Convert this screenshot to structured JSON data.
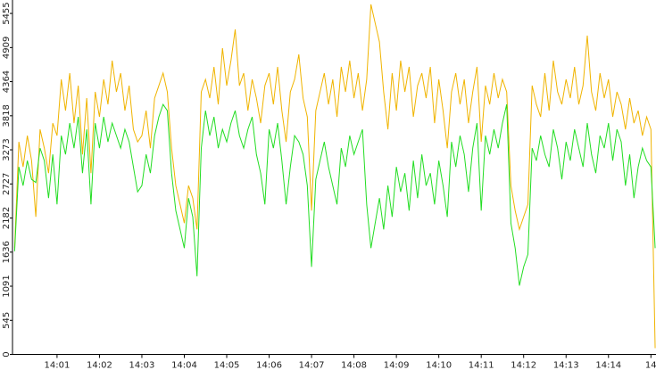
{
  "chart_data": {
    "type": "line",
    "x": [
      840,
      840.1,
      840.2,
      840.3,
      840.4,
      840.5,
      840.6,
      840.7,
      840.8,
      840.9,
      841,
      841.1,
      841.2,
      841.3,
      841.4,
      841.5,
      841.6,
      841.7,
      841.8,
      841.9,
      842,
      842.1,
      842.2,
      842.3,
      842.4,
      842.5,
      842.6,
      842.7,
      842.8,
      842.9,
      843,
      843.1,
      843.2,
      843.3,
      843.4,
      843.5,
      843.6,
      843.7,
      843.8,
      843.9,
      844,
      844.1,
      844.2,
      844.3,
      844.4,
      844.5,
      844.6,
      844.7,
      844.8,
      844.9,
      845,
      845.1,
      845.2,
      845.3,
      845.4,
      845.5,
      845.6,
      845.7,
      845.8,
      845.9,
      846,
      846.1,
      846.2,
      846.3,
      846.4,
      846.5,
      846.6,
      846.7,
      846.8,
      846.9,
      847,
      847.1,
      847.2,
      847.3,
      847.4,
      847.5,
      847.6,
      847.7,
      847.8,
      847.9,
      848,
      848.1,
      848.2,
      848.3,
      848.4,
      848.5,
      848.6,
      848.7,
      848.8,
      848.9,
      849,
      849.1,
      849.2,
      849.3,
      849.4,
      849.5,
      849.6,
      849.7,
      849.8,
      849.9,
      850,
      850.1,
      850.2,
      850.3,
      850.4,
      850.5,
      850.6,
      850.7,
      850.8,
      850.9,
      851,
      851.1,
      851.2,
      851.3,
      851.4,
      851.5,
      851.6,
      851.7,
      851.8,
      851.9,
      852,
      852.1,
      852.2,
      852.3,
      852.4,
      852.5,
      852.6,
      852.7,
      852.8,
      852.9,
      853,
      853.1,
      853.2,
      853.3,
      853.4,
      853.5,
      853.6,
      853.7,
      853.8,
      853.9,
      854,
      854.1,
      854.2,
      854.3,
      854.4,
      854.5,
      854.6,
      854.7,
      854.8,
      854.9,
      855,
      855.1
    ],
    "series": [
      {
        "color": "#f0b400",
        "values": [
          1700,
          3400,
          3000,
          3500,
          3100,
          2200,
          3600,
          3300,
          2900,
          3700,
          3500,
          4400,
          3900,
          4500,
          3700,
          4300,
          3200,
          4100,
          2900,
          4200,
          3800,
          4400,
          4000,
          4700,
          4200,
          4500,
          3900,
          4300,
          3600,
          3400,
          3500,
          3900,
          3300,
          4100,
          4300,
          4500,
          4200,
          3300,
          2700,
          2400,
          2100,
          2700,
          2500,
          2000,
          4200,
          4400,
          4100,
          4600,
          4000,
          4900,
          4300,
          4700,
          5200,
          4300,
          4500,
          3900,
          4400,
          4100,
          3700,
          4300,
          4500,
          4000,
          4600,
          3900,
          3400,
          4200,
          4400,
          4800,
          4100,
          3800,
          2300,
          3900,
          4200,
          4500,
          4000,
          4400,
          3800,
          4600,
          4200,
          4700,
          4100,
          4500,
          3900,
          4400,
          5600,
          5300,
          5000,
          4200,
          3600,
          4500,
          3900,
          4700,
          4200,
          4600,
          3800,
          4300,
          4500,
          4100,
          4600,
          3700,
          4400,
          3900,
          3300,
          4200,
          4500,
          4000,
          4400,
          3700,
          4200,
          4600,
          3400,
          4300,
          4000,
          4500,
          4100,
          4400,
          4200,
          2700,
          2300,
          2000,
          2200,
          2400,
          4300,
          4000,
          3800,
          4500,
          3900,
          4700,
          4200,
          4000,
          4400,
          4100,
          4600,
          4000,
          4300,
          5100,
          4200,
          3900,
          4500,
          4100,
          4400,
          3800,
          4200,
          4000,
          3600,
          4100,
          3700,
          3900,
          3500,
          3800,
          3600,
          100
        ]
      },
      {
        "color": "#22dd22",
        "values": [
          1650,
          3000,
          2700,
          3100,
          2800,
          2750,
          3300,
          3100,
          2500,
          3200,
          2400,
          3500,
          3200,
          3700,
          3300,
          3800,
          2900,
          3600,
          2400,
          3700,
          3300,
          3800,
          3400,
          3700,
          3500,
          3300,
          3600,
          3400,
          3000,
          2600,
          2700,
          3200,
          2900,
          3500,
          3800,
          4000,
          3900,
          2900,
          2300,
          2000,
          1700,
          2500,
          2200,
          1250,
          3300,
          3900,
          3500,
          3800,
          3300,
          3600,
          3400,
          3700,
          3900,
          3500,
          3300,
          3600,
          3800,
          3200,
          2900,
          2400,
          3600,
          3300,
          3700,
          3100,
          2400,
          3000,
          3500,
          3400,
          3200,
          2700,
          1400,
          2800,
          3100,
          3400,
          3000,
          2700,
          2400,
          3300,
          3000,
          3500,
          3200,
          3400,
          3600,
          2400,
          1700,
          2100,
          2500,
          2000,
          2700,
          2200,
          3000,
          2600,
          2900,
          2300,
          3100,
          2500,
          3200,
          2700,
          2900,
          2400,
          3100,
          2700,
          2200,
          3400,
          3000,
          3500,
          3200,
          2600,
          3300,
          3700,
          2300,
          3500,
          3200,
          3600,
          3300,
          3700,
          4000,
          2100,
          1700,
          1100,
          1400,
          1600,
          3300,
          3100,
          3500,
          3200,
          3000,
          3600,
          3300,
          2800,
          3400,
          3100,
          3600,
          3300,
          3000,
          3700,
          3200,
          2900,
          3500,
          3300,
          3700,
          3100,
          3600,
          3400,
          2700,
          3200,
          2500,
          3000,
          3300,
          3100,
          3000,
          1700
        ]
      }
    ],
    "xlim": [
      839.95,
      855.12
    ],
    "ylim": [
      0,
      5670
    ],
    "xticks": [
      {
        "value": 841,
        "label": "14:01"
      },
      {
        "value": 842,
        "label": "14:02"
      },
      {
        "value": 843,
        "label": "14:03"
      },
      {
        "value": 844,
        "label": "14:04"
      },
      {
        "value": 845,
        "label": "14:05"
      },
      {
        "value": 846,
        "label": "14:06"
      },
      {
        "value": 847,
        "label": "14:07"
      },
      {
        "value": 848,
        "label": "14:08"
      },
      {
        "value": 849,
        "label": "14:09"
      },
      {
        "value": 850,
        "label": "14:10"
      },
      {
        "value": 851,
        "label": "14:11"
      },
      {
        "value": 852,
        "label": "14:12"
      },
      {
        "value": 853,
        "label": "14:13"
      },
      {
        "value": 854,
        "label": "14:14"
      },
      {
        "value": 855,
        "label": "14"
      }
    ],
    "yticks": [
      0,
      545,
      1091,
      1636,
      2182,
      2727,
      3273,
      3818,
      4364,
      4909,
      5455
    ]
  }
}
